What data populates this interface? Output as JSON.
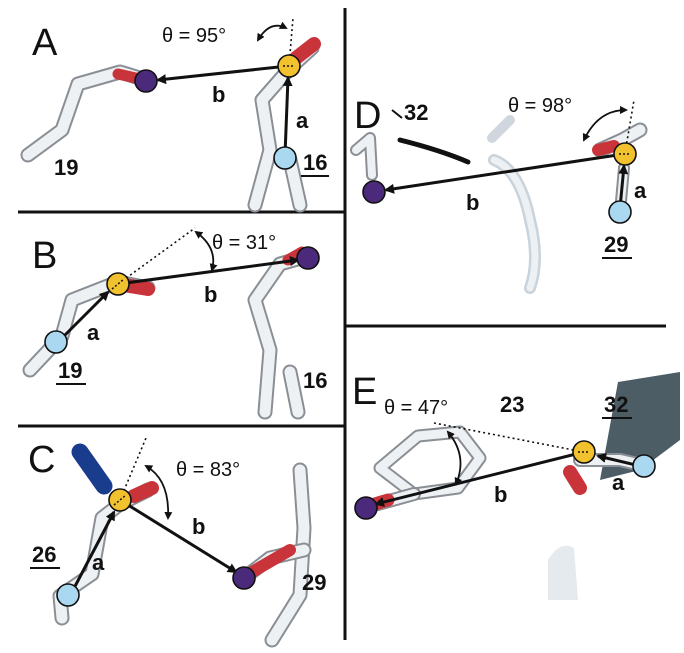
{
  "panels": {
    "A": {
      "label": "A",
      "theta": "θ = 95°",
      "vector_a": "a",
      "vector_b": "b",
      "residues": [
        "19",
        "16"
      ],
      "underlined": "16"
    },
    "B": {
      "label": "B",
      "theta": "θ = 31°",
      "vector_a": "a",
      "vector_b": "b",
      "residues": [
        "19",
        "16"
      ],
      "underlined": "19"
    },
    "C": {
      "label": "C",
      "theta": "θ = 83°",
      "vector_a": "a",
      "vector_b": "b",
      "residues": [
        "26",
        "29"
      ],
      "underlined": "26"
    },
    "D": {
      "label": "D",
      "theta": "θ = 98°",
      "vector_a": "a",
      "vector_b": "b",
      "residues": [
        "32",
        "29"
      ],
      "underlined": "29"
    },
    "E": {
      "label": "E",
      "theta": "θ = 47°",
      "vector_a": "a",
      "vector_b": "b",
      "residues": [
        "23",
        "32"
      ],
      "underlined": "32"
    }
  },
  "colors": {
    "atom_start": "#a9d8f0",
    "atom_center": "#f2c12e",
    "atom_end": "#4b2a7b",
    "oxygen": "#c9343a",
    "nitrogen": "#1a3c8c",
    "bond": "#e9edf1",
    "divider": "#111111"
  }
}
